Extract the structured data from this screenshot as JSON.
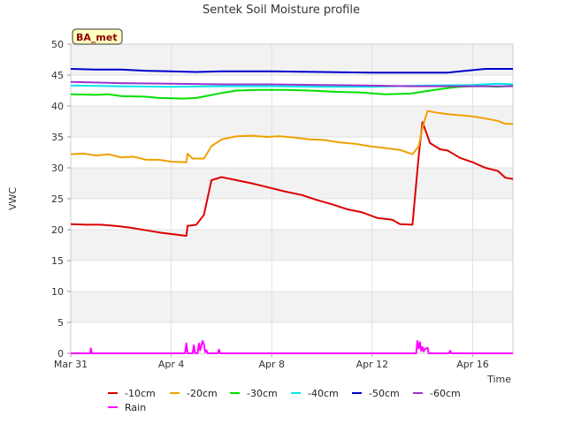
{
  "chart_data": {
    "type": "line",
    "title": "Sentek Soil Moisture profile",
    "xlabel": "Time",
    "ylabel": "VWC",
    "badge": "BA_met",
    "xlim": [
      0,
      17.6
    ],
    "ylim": [
      0,
      50
    ],
    "yticks": [
      0,
      5,
      10,
      15,
      20,
      25,
      30,
      35,
      40,
      45,
      50
    ],
    "xticks": [
      {
        "day": 0,
        "label": "Mar 31"
      },
      {
        "day": 4,
        "label": "Apr 4"
      },
      {
        "day": 8,
        "label": "Apr 8"
      },
      {
        "day": 12,
        "label": "Apr 12"
      },
      {
        "day": 16,
        "label": "Apr 16"
      }
    ],
    "grid": true,
    "legend_position": "bottom",
    "series": [
      {
        "name": "-10cm",
        "color": "#dd0000",
        "points": [
          [
            0.0,
            20.9
          ],
          [
            0.6,
            20.8
          ],
          [
            1.2,
            20.8
          ],
          [
            1.8,
            20.6
          ],
          [
            2.4,
            20.3
          ],
          [
            3.0,
            19.9
          ],
          [
            3.6,
            19.5
          ],
          [
            4.2,
            19.2
          ],
          [
            4.6,
            19.0
          ],
          [
            4.65,
            20.6
          ],
          [
            5.0,
            20.8
          ],
          [
            5.3,
            22.4
          ],
          [
            5.6,
            28.0
          ],
          [
            6.0,
            28.5
          ],
          [
            6.6,
            28.0
          ],
          [
            7.2,
            27.5
          ],
          [
            7.8,
            26.9
          ],
          [
            8.5,
            26.2
          ],
          [
            9.2,
            25.6
          ],
          [
            9.8,
            24.8
          ],
          [
            10.4,
            24.1
          ],
          [
            11.0,
            23.3
          ],
          [
            11.6,
            22.8
          ],
          [
            12.2,
            21.9
          ],
          [
            12.8,
            21.6
          ],
          [
            13.1,
            20.9
          ],
          [
            13.6,
            20.8
          ],
          [
            13.85,
            32.0
          ],
          [
            14.0,
            37.4
          ],
          [
            14.3,
            34.0
          ],
          [
            14.7,
            33.0
          ],
          [
            15.0,
            32.8
          ],
          [
            15.5,
            31.6
          ],
          [
            16.0,
            30.9
          ],
          [
            16.5,
            30.0
          ],
          [
            17.0,
            29.5
          ],
          [
            17.3,
            28.4
          ],
          [
            17.6,
            28.2
          ]
        ]
      },
      {
        "name": "-20cm",
        "color": "#f0a000",
        "points": [
          [
            0.0,
            32.2
          ],
          [
            0.5,
            32.3
          ],
          [
            1.0,
            32.0
          ],
          [
            1.5,
            32.2
          ],
          [
            2.0,
            31.7
          ],
          [
            2.5,
            31.8
          ],
          [
            3.0,
            31.3
          ],
          [
            3.5,
            31.3
          ],
          [
            4.0,
            31.0
          ],
          [
            4.6,
            30.9
          ],
          [
            4.65,
            32.3
          ],
          [
            4.85,
            31.5
          ],
          [
            5.3,
            31.5
          ],
          [
            5.6,
            33.5
          ],
          [
            6.0,
            34.6
          ],
          [
            6.6,
            35.1
          ],
          [
            7.2,
            35.2
          ],
          [
            7.8,
            35.0
          ],
          [
            8.3,
            35.1
          ],
          [
            8.9,
            34.9
          ],
          [
            9.5,
            34.6
          ],
          [
            10.1,
            34.5
          ],
          [
            10.7,
            34.1
          ],
          [
            11.3,
            33.9
          ],
          [
            11.9,
            33.5
          ],
          [
            12.5,
            33.2
          ],
          [
            13.1,
            32.9
          ],
          [
            13.6,
            32.2
          ],
          [
            13.85,
            33.5
          ],
          [
            14.0,
            36.5
          ],
          [
            14.2,
            39.2
          ],
          [
            14.6,
            38.9
          ],
          [
            15.2,
            38.6
          ],
          [
            15.8,
            38.4
          ],
          [
            16.2,
            38.2
          ],
          [
            16.6,
            37.9
          ],
          [
            17.0,
            37.6
          ],
          [
            17.3,
            37.1
          ],
          [
            17.6,
            37.1
          ]
        ]
      },
      {
        "name": "-30cm",
        "color": "#00e000",
        "points": [
          [
            0.0,
            41.9
          ],
          [
            1.0,
            41.8
          ],
          [
            1.5,
            41.9
          ],
          [
            2.0,
            41.6
          ],
          [
            3.0,
            41.5
          ],
          [
            3.5,
            41.3
          ],
          [
            4.5,
            41.2
          ],
          [
            5.0,
            41.3
          ],
          [
            5.5,
            41.7
          ],
          [
            6.0,
            42.1
          ],
          [
            6.6,
            42.5
          ],
          [
            7.5,
            42.6
          ],
          [
            8.5,
            42.6
          ],
          [
            9.5,
            42.5
          ],
          [
            10.5,
            42.3
          ],
          [
            11.5,
            42.2
          ],
          [
            12.5,
            41.9
          ],
          [
            13.5,
            42.0
          ],
          [
            14.0,
            42.3
          ],
          [
            14.5,
            42.6
          ],
          [
            15.0,
            42.9
          ],
          [
            15.5,
            43.1
          ],
          [
            16.0,
            43.2
          ],
          [
            16.5,
            43.2
          ],
          [
            17.0,
            43.1
          ],
          [
            17.3,
            43.2
          ],
          [
            17.6,
            43.3
          ]
        ]
      },
      {
        "name": "-40cm",
        "color": "#00e8e8",
        "points": [
          [
            0.0,
            43.3
          ],
          [
            2.0,
            43.2
          ],
          [
            4.0,
            43.1
          ],
          [
            6.0,
            43.2
          ],
          [
            8.0,
            43.2
          ],
          [
            10.0,
            43.1
          ],
          [
            12.0,
            43.1
          ],
          [
            14.0,
            43.3
          ],
          [
            16.0,
            43.4
          ],
          [
            17.0,
            43.6
          ],
          [
            17.6,
            43.5
          ]
        ]
      },
      {
        "name": "-50cm",
        "color": "#0000cc",
        "points": [
          [
            0.0,
            46.0
          ],
          [
            1.0,
            45.9
          ],
          [
            2.0,
            45.9
          ],
          [
            3.0,
            45.7
          ],
          [
            4.0,
            45.6
          ],
          [
            5.0,
            45.5
          ],
          [
            6.0,
            45.6
          ],
          [
            8.0,
            45.6
          ],
          [
            10.0,
            45.5
          ],
          [
            12.0,
            45.4
          ],
          [
            13.0,
            45.4
          ],
          [
            14.0,
            45.4
          ],
          [
            15.0,
            45.4
          ],
          [
            15.5,
            45.6
          ],
          [
            16.0,
            45.8
          ],
          [
            16.5,
            46.0
          ],
          [
            17.0,
            46.0
          ],
          [
            17.6,
            46.0
          ]
        ]
      },
      {
        "name": "-60cm",
        "color": "#9933cc",
        "points": [
          [
            0.0,
            43.9
          ],
          [
            2.0,
            43.7
          ],
          [
            4.0,
            43.6
          ],
          [
            6.0,
            43.5
          ],
          [
            8.0,
            43.5
          ],
          [
            10.0,
            43.4
          ],
          [
            12.0,
            43.3
          ],
          [
            13.5,
            43.2
          ],
          [
            15.0,
            43.2
          ],
          [
            16.0,
            43.2
          ],
          [
            17.6,
            43.2
          ]
        ]
      },
      {
        "name": "Rain",
        "color": "#ff00ff",
        "points": [
          [
            0.0,
            0
          ],
          [
            0.78,
            0
          ],
          [
            0.8,
            0.8
          ],
          [
            0.84,
            0
          ],
          [
            4.55,
            0
          ],
          [
            4.6,
            1.6
          ],
          [
            4.65,
            0
          ],
          [
            4.85,
            0
          ],
          [
            4.9,
            1.3
          ],
          [
            4.95,
            0
          ],
          [
            5.05,
            0
          ],
          [
            5.1,
            1.6
          ],
          [
            5.15,
            0.5
          ],
          [
            5.2,
            1.3
          ],
          [
            5.25,
            2.0
          ],
          [
            5.3,
            1.4
          ],
          [
            5.35,
            0.2
          ],
          [
            5.4,
            0.5
          ],
          [
            5.45,
            0
          ],
          [
            5.85,
            0
          ],
          [
            5.9,
            0.6
          ],
          [
            5.95,
            0
          ],
          [
            13.75,
            0
          ],
          [
            13.8,
            2.0
          ],
          [
            13.85,
            0.8
          ],
          [
            13.9,
            1.8
          ],
          [
            13.95,
            0.4
          ],
          [
            14.0,
            1.0
          ],
          [
            14.05,
            0.3
          ],
          [
            14.1,
            0.7
          ],
          [
            14.2,
            0.9
          ],
          [
            14.25,
            0
          ],
          [
            15.05,
            0
          ],
          [
            15.1,
            0.4
          ],
          [
            15.15,
            0
          ],
          [
            17.6,
            0
          ]
        ]
      }
    ]
  }
}
